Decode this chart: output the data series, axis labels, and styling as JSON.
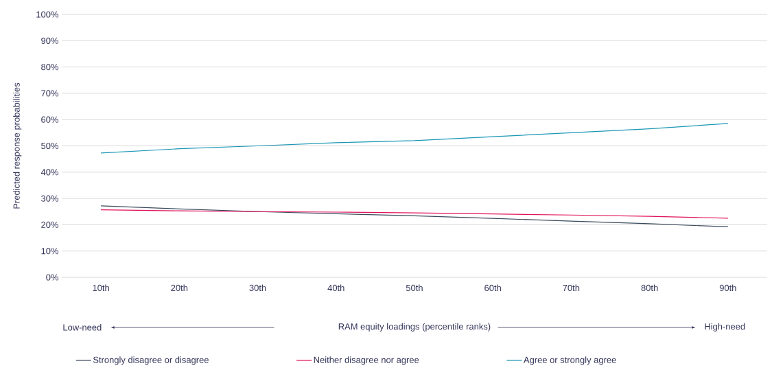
{
  "chart_data": {
    "type": "line",
    "xlabel": "RAM equity loadings (percentile ranks)",
    "ylabel": "Predicted response probabilities",
    "annotations": [
      "Low-need",
      "High-need"
    ],
    "categories": [
      "10th",
      "20th",
      "30th",
      "40th",
      "50th",
      "60th",
      "70th",
      "80th",
      "90th"
    ],
    "series": [
      {
        "name": "Strongly disagree or disagree",
        "color": "#3a4a5c",
        "values": [
          27.2,
          26.0,
          25.0,
          24.2,
          23.4,
          22.4,
          21.4,
          20.4,
          19.2
        ]
      },
      {
        "name": "Neither disagree nor agree",
        "color": "#e0105a",
        "values": [
          25.7,
          25.3,
          25.0,
          24.8,
          24.5,
          24.1,
          23.7,
          23.2,
          22.5
        ]
      },
      {
        "name": "Agree or strongly agree",
        "color": "#1a96b4",
        "values": [
          47.3,
          48.9,
          50.0,
          51.2,
          52.0,
          53.5,
          55.0,
          56.5,
          58.5
        ]
      }
    ],
    "ylim": [
      0,
      100
    ],
    "yticks": [
      {
        "value": 0,
        "label": "0%"
      },
      {
        "value": 10,
        "label": "10%"
      },
      {
        "value": 20,
        "label": "20%"
      },
      {
        "value": 30,
        "label": "30%"
      },
      {
        "value": 40,
        "label": "40%"
      },
      {
        "value": 50,
        "label": "50%"
      },
      {
        "value": 60,
        "label": "60%"
      },
      {
        "value": 70,
        "label": "70%"
      },
      {
        "value": 80,
        "label": "80%"
      },
      {
        "value": 90,
        "label": "90%"
      },
      {
        "value": 100,
        "label": "100%"
      }
    ],
    "grid": "y",
    "legend": "bottom",
    "marker": "none",
    "line_style": "solid"
  }
}
